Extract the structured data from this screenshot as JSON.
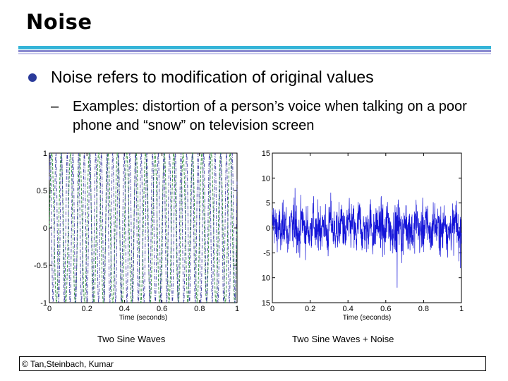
{
  "slide": {
    "title": "Noise",
    "bullet": "Noise refers to modification of original values",
    "sub_dash": "–",
    "sub_bullet": "Examples: distortion of a person’s voice when talking on a poor phone and “snow” on television screen",
    "caption_left": "Two Sine Waves",
    "caption_right": "Two Sine Waves + Noise",
    "footer": "© Tan,Steinbach, Kumar"
  },
  "chart_data": [
    {
      "type": "line",
      "title": "",
      "xlabel": "Time (seconds)",
      "ylabel": "",
      "xlim": [
        0,
        1
      ],
      "ylim": [
        -1,
        1
      ],
      "x_ticks": [
        "0",
        "0.2",
        "0.4",
        "0.6",
        "0.8",
        "1"
      ],
      "y_ticks": [
        "1",
        "0.5",
        "0",
        "-0.5",
        "-1"
      ],
      "grid": false,
      "series": [
        {
          "values_description_frequency_hz": 20,
          "amplitude": 1,
          "color": "#2a8a3a",
          "style": "dashed"
        },
        {
          "values_description_frequency_hz": 33,
          "amplitude": 1,
          "color": "#3a3aa0",
          "style": "dashdot"
        }
      ]
    },
    {
      "type": "line",
      "title": "",
      "xlabel": "Time (seconds)",
      "ylabel": "",
      "xlim": [
        0,
        1
      ],
      "ylim": [
        -15,
        15
      ],
      "x_ticks": [
        "0",
        "0.2",
        "0.4",
        "0.6",
        "0.8",
        "1"
      ],
      "y_ticks": [
        "15",
        "10",
        "5",
        "0",
        "-5",
        "10",
        "15"
      ],
      "grid": false,
      "series": [
        {
          "color": "#1414d8",
          "style": "solid",
          "typical_range": [
            -6,
            6
          ],
          "min": -12,
          "max": 8
        }
      ]
    }
  ],
  "colors": {
    "rule_top": "#34b4d8",
    "rule_mid": "#8a8ad0",
    "bullet_dot": "#2a3a9a"
  }
}
